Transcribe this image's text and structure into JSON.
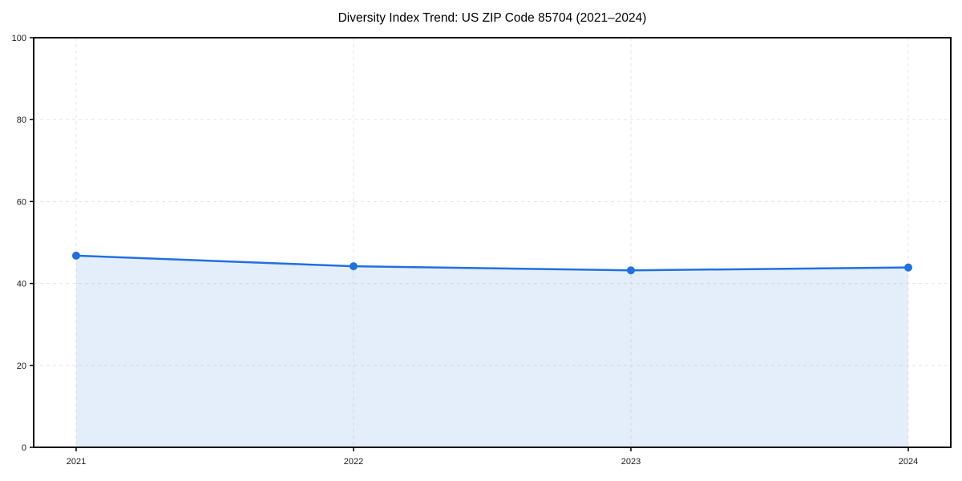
{
  "chart_data": {
    "type": "area",
    "title": "Diversity Index Trend: US ZIP Code 85704 (2021–2024)",
    "series_name": "Diversity Index",
    "categories": [
      "2021",
      "2022",
      "2023",
      "2024"
    ],
    "values": [
      46.8,
      44.2,
      43.2,
      43.9
    ],
    "xlabel": "",
    "ylabel": "",
    "ylim": [
      0,
      100
    ],
    "yticks": [
      0,
      20,
      40,
      60,
      80,
      100
    ],
    "grid": true,
    "grid_style": "dashed",
    "legend_position": "none",
    "line_color": "#2170e0",
    "marker_color": "#2170e0",
    "fill_color": "rgba(33,112,224,0.12)",
    "grid_color": "#e5e5e5",
    "axis_color": "#000000",
    "tick_label_color": "#1a1a1a",
    "background_color": "#ffffff"
  }
}
